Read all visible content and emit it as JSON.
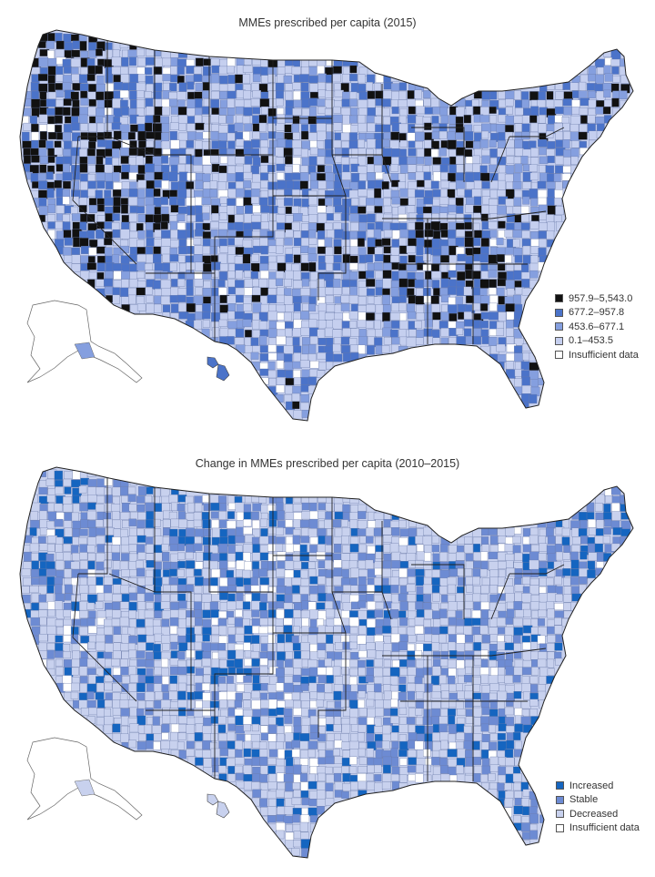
{
  "colors": {
    "c0": "#111111",
    "c1": "#4b73c9",
    "c2": "#859fdf",
    "c3": "#c5cfef",
    "c4": "#ffffff",
    "inc": "#1565c0",
    "sta": "#6d8bd3",
    "dec": "#c8d1ee",
    "na": "#ffffff",
    "stroke": "#3a3a3a"
  },
  "map1": {
    "title": "MMEs prescribed per capita (2015)",
    "legend": [
      {
        "label": "957.9–5,543.0",
        "color": "#111111"
      },
      {
        "label": "677.2–957.8",
        "color": "#4b73c9"
      },
      {
        "label": "453.6–677.1",
        "color": "#859fdf"
      },
      {
        "label": "0.1–453.5",
        "color": "#c5cfef"
      },
      {
        "label": "Insufficient data",
        "color": "#ffffff"
      }
    ]
  },
  "map2": {
    "title": "Change in MMEs prescribed per capita (2010–2015)",
    "legend": [
      {
        "label": "Increased",
        "color": "#1565c0"
      },
      {
        "label": "Stable",
        "color": "#6d8bd3"
      },
      {
        "label": "Decreased",
        "color": "#c8d1ee"
      },
      {
        "label": "Insufficient data",
        "color": "#ffffff"
      }
    ]
  }
}
